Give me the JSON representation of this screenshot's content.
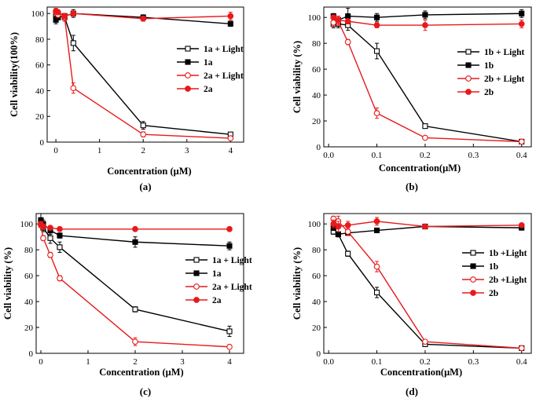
{
  "chart_data": [
    {
      "panel_label": "(a)",
      "type": "line",
      "xlabel": "Concentration (μM)",
      "ylabel": "Cell viability(100%)",
      "xlim": [
        -0.2,
        4.3
      ],
      "ylim": [
        0,
        105
      ],
      "xticks": [
        0,
        1,
        2,
        3,
        4
      ],
      "yticks": [
        0,
        20,
        40,
        60,
        80,
        100
      ],
      "grid": false,
      "legend_position": "right",
      "series": [
        {
          "name": "1a + Light",
          "color": "#000000",
          "marker": "open-square",
          "x": [
            0,
            0.05,
            0.2,
            0.4,
            2,
            4
          ],
          "y": [
            99,
            98,
            97,
            77,
            13,
            6
          ],
          "err": [
            3,
            2,
            3,
            6,
            3,
            1
          ]
        },
        {
          "name": "1a",
          "color": "#000000",
          "marker": "filled-square",
          "x": [
            0,
            0.05,
            0.2,
            0.4,
            2,
            4
          ],
          "y": [
            95,
            97,
            98,
            100,
            97,
            92
          ],
          "err": [
            3,
            2,
            2,
            3,
            2,
            2
          ]
        },
        {
          "name": "2a + Light",
          "color": "#e8191b",
          "marker": "open-circle",
          "x": [
            0,
            0.05,
            0.2,
            0.4,
            2,
            4
          ],
          "y": [
            101,
            99,
            97,
            42,
            6,
            3
          ],
          "err": [
            2,
            2,
            3,
            4,
            2,
            1
          ]
        },
        {
          "name": "2a",
          "color": "#e8191b",
          "marker": "filled-circle",
          "x": [
            0,
            0.05,
            0.2,
            0.4,
            2,
            4
          ],
          "y": [
            102,
            101,
            98,
            100,
            96,
            98
          ],
          "err": [
            2,
            2,
            2,
            2,
            2,
            3
          ]
        }
      ]
    },
    {
      "panel_label": "(b)",
      "type": "line",
      "xlabel": "Concentration(μM)",
      "ylabel": "Cell viability (%)",
      "xlim": [
        -0.01,
        0.42
      ],
      "ylim": [
        0,
        108
      ],
      "xticks": [
        0.0,
        0.1,
        0.2,
        0.3,
        0.4
      ],
      "yticks": [
        0,
        20,
        40,
        60,
        80,
        100
      ],
      "grid": false,
      "legend_position": "right",
      "series": [
        {
          "name": "1b + Light",
          "color": "#000000",
          "marker": "open-square",
          "x": [
            0.01,
            0.02,
            0.04,
            0.1,
            0.2,
            0.4
          ],
          "y": [
            95,
            95,
            94,
            74,
            16,
            4
          ],
          "err": [
            3,
            3,
            4,
            6,
            1,
            1
          ]
        },
        {
          "name": "1b",
          "color": "#000000",
          "marker": "filled-square",
          "x": [
            0.01,
            0.02,
            0.04,
            0.1,
            0.2,
            0.4
          ],
          "y": [
            101,
            98,
            101,
            100,
            102,
            103
          ],
          "err": [
            2,
            3,
            6,
            3,
            3,
            3
          ]
        },
        {
          "name": "2b + Light",
          "color": "#e8191b",
          "marker": "open-circle",
          "x": [
            0.01,
            0.02,
            0.04,
            0.1,
            0.2,
            0.4
          ],
          "y": [
            96,
            97,
            81,
            26,
            7,
            4
          ],
          "err": [
            3,
            3,
            2,
            4,
            1,
            1
          ]
        },
        {
          "name": "2b",
          "color": "#e8191b",
          "marker": "filled-circle",
          "x": [
            0.01,
            0.02,
            0.04,
            0.1,
            0.2,
            0.4
          ],
          "y": [
            100,
            98,
            97,
            94,
            94,
            95
          ],
          "err": [
            2,
            3,
            2,
            2,
            4,
            3
          ]
        }
      ]
    },
    {
      "panel_label": "(c)",
      "type": "line",
      "xlabel": "Concentration (μM)",
      "ylabel": "Cell viability (%)",
      "xlim": [
        -0.1,
        4.3
      ],
      "ylim": [
        0,
        108
      ],
      "xticks": [
        0,
        1,
        2,
        3,
        4
      ],
      "yticks": [
        0,
        20,
        40,
        60,
        80,
        100
      ],
      "grid": false,
      "legend_position": "right",
      "series": [
        {
          "name": "1a + Light",
          "color": "#000000",
          "marker": "open-square",
          "x": [
            0,
            0.05,
            0.2,
            0.4,
            2,
            4
          ],
          "y": [
            101,
            97,
            89,
            82,
            34,
            17
          ],
          "err": [
            3,
            3,
            4,
            4,
            2,
            4
          ]
        },
        {
          "name": "1a",
          "color": "#000000",
          "marker": "filled-square",
          "x": [
            0,
            0.05,
            0.2,
            0.4,
            2,
            4
          ],
          "y": [
            103,
            100,
            95,
            91,
            86,
            83
          ],
          "err": [
            5,
            3,
            3,
            2,
            4,
            3
          ]
        },
        {
          "name": "2a + Light",
          "color": "#e8191b",
          "marker": "open-circle",
          "x": [
            0,
            0.05,
            0.2,
            0.4,
            2,
            4
          ],
          "y": [
            99,
            89,
            76,
            58,
            9,
            5
          ],
          "err": [
            2,
            2,
            2,
            2,
            3,
            1
          ]
        },
        {
          "name": "2a",
          "color": "#e8191b",
          "marker": "filled-circle",
          "x": [
            0,
            0.05,
            0.2,
            0.4,
            2,
            4
          ],
          "y": [
            100,
            98,
            97,
            96,
            96,
            96
          ],
          "err": [
            2,
            2,
            1,
            1,
            1,
            1
          ]
        }
      ]
    },
    {
      "panel_label": "(d)",
      "type": "line",
      "xlabel": "Concentration(μM)",
      "ylabel": "Cell viability (%)",
      "xlim": [
        -0.01,
        0.42
      ],
      "ylim": [
        0,
        108
      ],
      "xticks": [
        0.0,
        0.1,
        0.2,
        0.3,
        0.4
      ],
      "yticks": [
        0,
        20,
        40,
        60,
        80,
        100
      ],
      "grid": false,
      "legend_position": "right",
      "series": [
        {
          "name": "1b +Light",
          "color": "#000000",
          "marker": "open-square",
          "x": [
            0.01,
            0.02,
            0.04,
            0.1,
            0.2,
            0.4
          ],
          "y": [
            94,
            92,
            77,
            47,
            7,
            4
          ],
          "err": [
            2,
            2,
            2,
            4,
            1,
            1
          ]
        },
        {
          "name": "1b",
          "color": "#000000",
          "marker": "filled-square",
          "x": [
            0.01,
            0.02,
            0.04,
            0.1,
            0.2,
            0.4
          ],
          "y": [
            97,
            92,
            93,
            95,
            98,
            97
          ],
          "err": [
            2,
            2,
            1,
            1,
            1,
            1
          ]
        },
        {
          "name": "2b +Light",
          "color": "#e8191b",
          "marker": "open-circle",
          "x": [
            0.01,
            0.02,
            0.04,
            0.1,
            0.2,
            0.4
          ],
          "y": [
            104,
            102,
            94,
            67,
            9,
            4
          ],
          "err": [
            2,
            4,
            3,
            4,
            1,
            1
          ]
        },
        {
          "name": "2b",
          "color": "#e8191b",
          "marker": "filled-circle",
          "x": [
            0.01,
            0.02,
            0.04,
            0.1,
            0.2,
            0.4
          ],
          "y": [
            100,
            98,
            99,
            102,
            98,
            99
          ],
          "err": [
            3,
            4,
            3,
            3,
            1,
            1
          ]
        }
      ]
    }
  ]
}
